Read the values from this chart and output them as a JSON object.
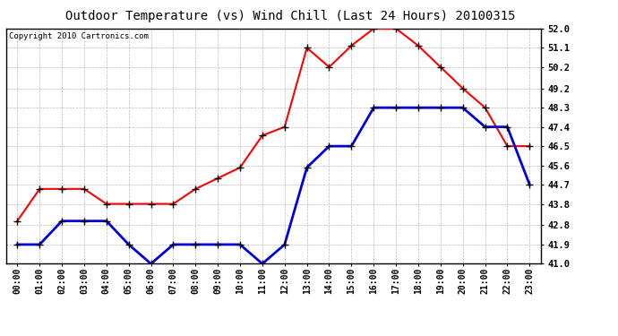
{
  "title": "Outdoor Temperature (vs) Wind Chill (Last 24 Hours) 20100315",
  "copyright": "Copyright 2010 Cartronics.com",
  "x_labels": [
    "00:00",
    "01:00",
    "02:00",
    "03:00",
    "04:00",
    "05:00",
    "06:00",
    "07:00",
    "08:00",
    "09:00",
    "10:00",
    "11:00",
    "12:00",
    "13:00",
    "14:00",
    "15:00",
    "16:00",
    "17:00",
    "18:00",
    "19:00",
    "20:00",
    "21:00",
    "22:00",
    "23:00"
  ],
  "temp_red": [
    43.0,
    44.5,
    44.5,
    44.5,
    43.8,
    43.8,
    43.8,
    43.8,
    44.5,
    45.0,
    45.5,
    47.0,
    47.4,
    51.1,
    50.2,
    51.2,
    52.0,
    52.0,
    51.2,
    50.2,
    49.2,
    48.3,
    46.5,
    46.5
  ],
  "wind_blue": [
    41.9,
    41.9,
    43.0,
    43.0,
    43.0,
    41.9,
    41.0,
    41.9,
    41.9,
    41.9,
    41.9,
    41.0,
    41.9,
    45.5,
    46.5,
    46.5,
    48.3,
    48.3,
    48.3,
    48.3,
    48.3,
    47.4,
    47.4,
    44.7
  ],
  "ylim_min": 41.0,
  "ylim_max": 52.0,
  "yticks": [
    41.0,
    41.9,
    42.8,
    43.8,
    44.7,
    45.6,
    46.5,
    47.4,
    48.3,
    49.2,
    50.2,
    51.1,
    52.0
  ],
  "red_color": "#ff0000",
  "blue_color": "#0000dd",
  "grid_color": "#bbbbbb",
  "bg_color": "#ffffff",
  "title_fontsize": 10,
  "copyright_fontsize": 6.5
}
